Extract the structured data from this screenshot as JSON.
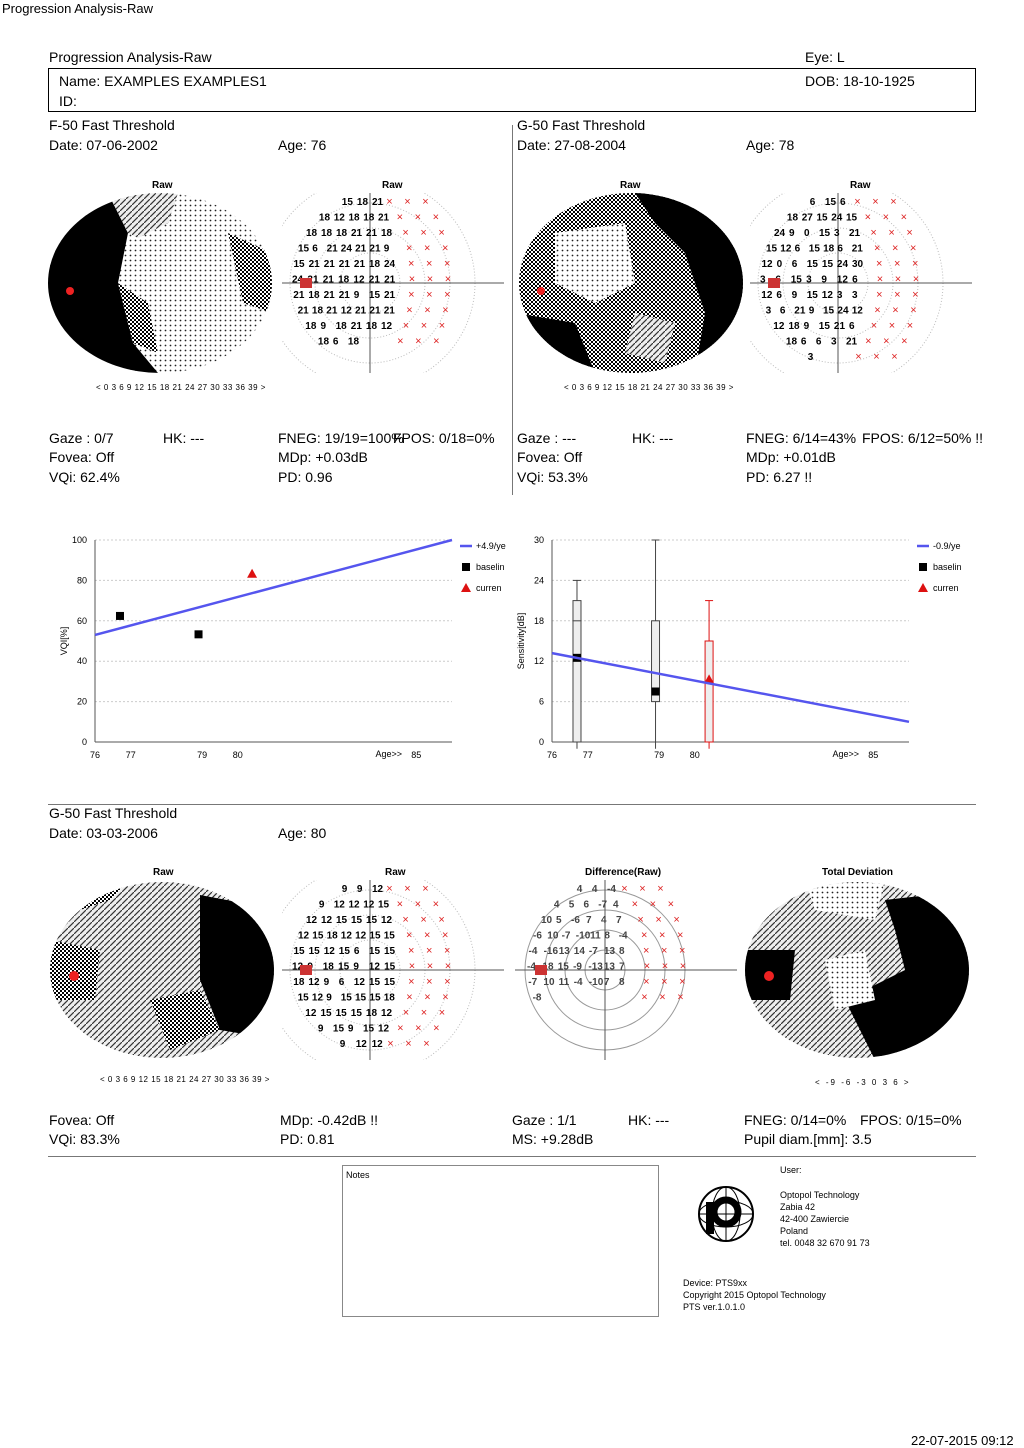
{
  "window_title": "Progression Analysis-Raw",
  "report": {
    "title": "Progression Analysis-Raw",
    "eye": "Eye: L",
    "name": "Name: EXAMPLES EXAMPLES1",
    "id": "ID:",
    "dob": "DOB: 18-10-1925"
  },
  "exam1": {
    "strategy": "F-50 Fast Threshold",
    "date": "Date: 07-06-2002",
    "age": "Age: 76",
    "raw_label": "Raw",
    "raw2_label": "Raw",
    "gaze": "Gaze : 0/7",
    "hk": "HK: ---",
    "fneg": "FNEG: 19/19=100%",
    "fpos": "FPOS: 0/18=0%",
    "fovea": "Fovea: Off",
    "mdp": "MDp: +0.03dB",
    "vqi": "VQi: 62.4%",
    "pd": "PD: 0.96",
    "scale": "< 0 3 6 9 12 15 18 21 24 27 30 33 36 39 >"
  },
  "exam2": {
    "strategy": "G-50 Fast Threshold",
    "date": "Date: 27-08-2004",
    "age": "Age: 78",
    "raw_label": "Raw",
    "raw2_label": "Raw",
    "gaze": "Gaze : ---",
    "hk": "HK: ---",
    "fneg": "FNEG: 6/14=43%",
    "fpos": "FPOS: 6/12=50% !!",
    "fovea": "Fovea: Off",
    "mdp": "MDp: +0.01dB",
    "vqi": "VQi: 53.3%",
    "pd": "PD: 6.27 !!",
    "scale": "< 0 3 6 9 12 15 18 21 24 27 30 33 36 39 >"
  },
  "exam3": {
    "strategy": "G-50 Fast Threshold",
    "date": "Date: 03-03-2006",
    "age": "Age: 80",
    "raw_label": "Raw",
    "raw2_label": "Raw",
    "diff_label": "Difference(Raw)",
    "td_label": "Total Deviation",
    "fovea": "Fovea: Off",
    "vqi": "VQi: 83.3%",
    "mdp": "MDp: -0.42dB !!",
    "pd": "PD: 0.81",
    "gaze": "Gaze : 1/1",
    "ms": "MS: +9.28dB",
    "hk": "HK: ---",
    "fneg": "FNEG: 0/14=0%",
    "fpos": "FPOS: 0/15=0%",
    "pupil": "Pupil diam.[mm]: 3.5",
    "scale": "< 0 3 6 9 12 15 18 21 24 27 30 33 36 39 >",
    "td_scale": "< -9 -6 -3 0 3 6 >"
  },
  "chart_data": [
    {
      "type": "scatter",
      "ylabel": "VQI[%]",
      "xlabel": "Age>>",
      "x_ticks": [
        "76",
        "77",
        "79",
        "80",
        "85"
      ],
      "y_ticks": [
        "100",
        "80",
        "60",
        "40",
        "20",
        "0"
      ],
      "xlim": [
        76,
        86
      ],
      "ylim": [
        0,
        100
      ],
      "legend": [
        "+4.9/ye",
        "baselin",
        "curren"
      ],
      "legend_position": "top-right",
      "series": [
        {
          "name": "baselin",
          "marker": "square",
          "color": "#000000",
          "points": [
            [
              76.7,
              62.4
            ],
            [
              78.9,
              53.3
            ]
          ]
        },
        {
          "name": "curren",
          "marker": "triangle",
          "color": "#dd1111",
          "points": [
            [
              80.4,
              83.3
            ]
          ]
        }
      ],
      "trend": {
        "name": "+4.9/ye",
        "color": "#5555ee",
        "points": [
          [
            76,
            53
          ],
          [
            86,
            102
          ]
        ]
      }
    },
    {
      "type": "box",
      "ylabel": "Sensitivity[dB]",
      "xlabel": "Age>>",
      "x_ticks": [
        "76",
        "77",
        "79",
        "80",
        "85"
      ],
      "y_ticks": [
        "30",
        "24",
        "18",
        "12",
        "6",
        "0"
      ],
      "xlim": [
        76,
        86
      ],
      "ylim": [
        0,
        30
      ],
      "legend": [
        "-0.9/ye",
        "baselin",
        "curren"
      ],
      "legend_position": "top-right",
      "boxes": [
        {
          "x": 76.7,
          "min": -1,
          "q1": 0,
          "median": 18,
          "q3": 21,
          "max": 24,
          "mean": 12.5,
          "color": "#444444",
          "marker": "square"
        },
        {
          "x": 78.9,
          "min": -1,
          "q1": 6,
          "median": 7,
          "q3": 18,
          "max": 30,
          "mean": 7.5,
          "color": "#444444",
          "marker": "square"
        },
        {
          "x": 80.4,
          "min": -1,
          "q1": 0,
          "median": 9,
          "q3": 15,
          "max": 21,
          "mean": 9.3,
          "color": "#dd1111",
          "marker": "triangle"
        }
      ],
      "trend": {
        "name": "-0.9/ye",
        "color": "#5555ee",
        "points": [
          [
            76,
            13.2
          ],
          [
            86,
            3
          ]
        ]
      }
    }
  ],
  "notes": {
    "label": "Notes"
  },
  "company": {
    "user_label": "User:",
    "lines": [
      "Optopol Technology",
      "Zabia 42",
      "42-400 Zawiercie",
      "Poland",
      "tel. 0048 32 670 91 73"
    ],
    "device": "Device: PTS9xx",
    "copyright": "Copyright 2015 Optopol Technology",
    "version": "PTS ver.1.0.1.0"
  },
  "footer": {
    "timestamp": "22-07-2015 09:12"
  },
  "field_values": {
    "exam1": [
      "15",
      "18",
      "21",
      "18",
      "12",
      "18",
      "18",
      "21",
      "18",
      "18",
      "18",
      "21",
      "21",
      "18",
      "15",
      "6",
      "21",
      "24",
      "21",
      "21",
      "9",
      "15",
      "21",
      "21",
      "21",
      "21",
      "18",
      "24",
      "24",
      "21",
      "21",
      "18",
      "12",
      "21",
      "21",
      "21",
      "18",
      "21",
      "21",
      "9",
      "15",
      "21",
      "21",
      "18",
      "21",
      "12",
      "21",
      "21",
      "21",
      "18",
      "9",
      "18",
      "21",
      "18",
      "12",
      "18",
      "6",
      "18"
    ],
    "exam2": [
      "6",
      "15",
      "6",
      "18",
      "27",
      "15",
      "24",
      "15",
      "24",
      "9",
      "0",
      "15",
      "3",
      "21",
      "15",
      "12",
      "6",
      "15",
      "18",
      "6",
      "21",
      "12",
      "0",
      "6",
      "15",
      "15",
      "24",
      "30",
      "3",
      "6",
      "15",
      "3",
      "9",
      "12",
      "6",
      "12",
      "6",
      "9",
      "15",
      "12",
      "3",
      "3",
      "3",
      "6",
      "21",
      "9",
      "15",
      "24",
      "12",
      "12",
      "18",
      "9",
      "15",
      "21",
      "6",
      "18",
      "6",
      "6",
      "3",
      "21",
      "3"
    ],
    "exam3": [
      "9",
      "9",
      "12",
      "9",
      "12",
      "12",
      "12",
      "15",
      "12",
      "12",
      "15",
      "15",
      "15",
      "12",
      "12",
      "15",
      "18",
      "12",
      "12",
      "15",
      "15",
      "15",
      "15",
      "12",
      "15",
      "6",
      "15",
      "15",
      "12",
      "9",
      "18",
      "15",
      "9",
      "12",
      "15",
      "18",
      "12",
      "9",
      "6",
      "12",
      "15",
      "15",
      "15",
      "12",
      "9",
      "15",
      "15",
      "15",
      "18",
      "12",
      "15",
      "15",
      "15",
      "18",
      "12",
      "9",
      "15",
      "9",
      "15",
      "12",
      "9",
      "12",
      "12",
      "15",
      "9",
      "15",
      "12",
      "12",
      "9",
      "9",
      "6",
      "12",
      "0",
      "0",
      "12"
    ],
    "diff": [
      "4",
      "4",
      "-4",
      "4",
      "5",
      "6",
      "-7",
      "4",
      "10",
      "5",
      "-6",
      "7",
      "4",
      "7",
      "-6",
      "10",
      "-7",
      "-10",
      "11",
      "8",
      "-4",
      "-4",
      "-16",
      "13",
      "14",
      "-7",
      "13",
      "8",
      "-4",
      "18",
      "15",
      "-9",
      "-13",
      "13",
      "7",
      "-7",
      "10",
      "11",
      "-4",
      "-10",
      "7",
      "8",
      "-8"
    ]
  }
}
